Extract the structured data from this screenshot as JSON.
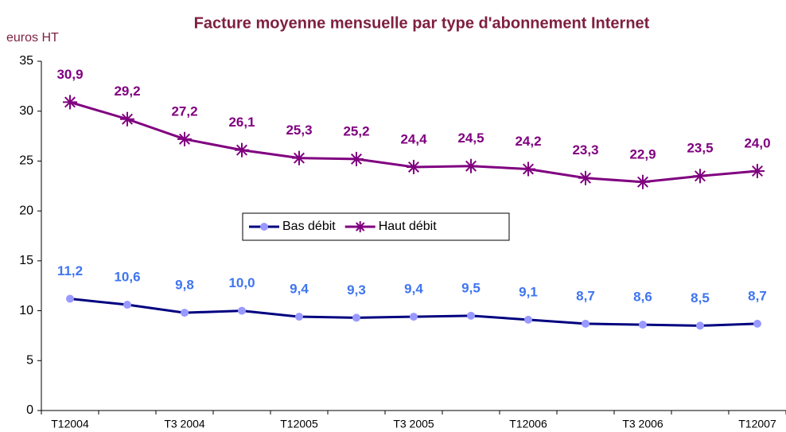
{
  "chart_data": {
    "type": "line",
    "title": "Facture moyenne mensuelle par type d'abonnement Internet",
    "y_label": "euros HT",
    "categories": [
      "T12004",
      null,
      "T3 2004",
      null,
      "T12005",
      null,
      "T3 2005",
      null,
      "T12006",
      null,
      "T3 2006",
      null,
      "T12007"
    ],
    "series": [
      {
        "name": "Bas débit",
        "color": "#000080",
        "marker_color": "#9999ff",
        "label_color": "#3f75f0",
        "marker": "circle",
        "values": [
          11.2,
          10.6,
          9.8,
          10.0,
          9.4,
          9.3,
          9.4,
          9.5,
          9.1,
          8.7,
          8.6,
          8.5,
          8.7
        ],
        "value_labels": [
          "11,2",
          "10,6",
          "9,8",
          "10,0",
          "9,4",
          "9,3",
          "9,4",
          "9,5",
          "9,1",
          "8,7",
          "8,6",
          "8,5",
          "8,7"
        ]
      },
      {
        "name": "Haut débit",
        "color": "#800080",
        "marker_color": "#800080",
        "label_color": "#800080",
        "marker": "star",
        "values": [
          30.9,
          29.2,
          27.2,
          26.1,
          25.3,
          25.2,
          24.4,
          24.5,
          24.2,
          23.3,
          22.9,
          23.5,
          24.0
        ],
        "value_labels": [
          "30,9",
          "29,2",
          "27,2",
          "26,1",
          "25,3",
          "25,2",
          "24,4",
          "24,5",
          "24,2",
          "23,3",
          "22,9",
          "23,5",
          "24,0"
        ]
      }
    ],
    "ylim": [
      0,
      35
    ],
    "yticks": [
      0,
      5,
      10,
      15,
      20,
      25,
      30,
      35
    ],
    "grid": false,
    "legend": "center"
  }
}
